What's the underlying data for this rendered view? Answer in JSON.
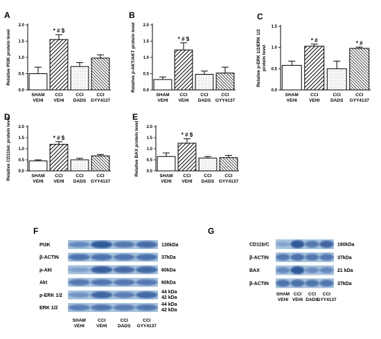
{
  "categories": [
    "SHAM VEHI",
    "CCI VEHI",
    "CCI DADS",
    "CCI GYY4137"
  ],
  "chart_data": [
    {
      "panel": "A",
      "type": "bar",
      "ylabel": "Relative PI3K protein level",
      "ylim": [
        0,
        2.0
      ],
      "yticks": [
        "0.0",
        "0.5",
        "1.0",
        "1.5",
        "2.0"
      ],
      "categories": [
        "SHAM VEHI",
        "CCI VEHI",
        "CCI DADS",
        "CCI GYY4137"
      ],
      "values": [
        0.5,
        1.55,
        0.72,
        0.98
      ],
      "errors": [
        0.2,
        0.15,
        0.12,
        0.1
      ],
      "annotations": [
        "",
        "*#$",
        "",
        ""
      ]
    },
    {
      "panel": "B",
      "type": "bar",
      "ylabel": "Relative p-AKT/AKT protein level",
      "ylim": [
        0,
        2.0
      ],
      "yticks": [
        "0.0",
        "0.5",
        "1.0",
        "1.5",
        "2.0"
      ],
      "categories": [
        "SHAM VEHI",
        "CCI VEHI",
        "CCI DADS",
        "CCI GYY4137"
      ],
      "values": [
        0.32,
        1.23,
        0.48,
        0.52
      ],
      "errors": [
        0.08,
        0.22,
        0.1,
        0.18
      ],
      "annotations": [
        "",
        "*#$",
        "",
        ""
      ]
    },
    {
      "panel": "C",
      "type": "bar",
      "ylabel": "Relative p-ERK 1/2/ERK 1/2 protein level",
      "ylim": [
        0,
        1.5
      ],
      "yticks": [
        "0.0",
        "0.5",
        "1.0",
        "1.5"
      ],
      "categories": [
        "SHAM VEHI",
        "CCI VEHI",
        "CCI DADS",
        "CCI GYY4137"
      ],
      "values": [
        0.58,
        1.03,
        0.5,
        0.98
      ],
      "errors": [
        0.1,
        0.05,
        0.18,
        0.03
      ],
      "annotations": [
        "",
        "*#",
        "",
        "*#"
      ]
    },
    {
      "panel": "D",
      "type": "bar",
      "ylabel": "Relative CD11b/c protein level",
      "ylim": [
        0,
        2.0
      ],
      "yticks": [
        "0.0",
        "0.5",
        "1.0",
        "1.5",
        "2.0"
      ],
      "categories": [
        "SHAM VEHI",
        "CCI VEHI",
        "CCI DADS",
        "CCI GYY4137"
      ],
      "values": [
        0.45,
        1.2,
        0.5,
        0.68
      ],
      "errors": [
        0.05,
        0.12,
        0.07,
        0.06
      ],
      "annotations": [
        "",
        "*#$",
        "",
        ""
      ]
    },
    {
      "panel": "E",
      "type": "bar",
      "ylabel": "Relative BAX protein level",
      "ylim": [
        0,
        2.0
      ],
      "yticks": [
        "0.0",
        "0.5",
        "1.0",
        "1.5",
        "2.0"
      ],
      "categories": [
        "SHAM VEHI",
        "CCI VEHI",
        "CCI DADS",
        "CCI GYY4137"
      ],
      "values": [
        0.65,
        1.25,
        0.58,
        0.6
      ],
      "errors": [
        0.16,
        0.2,
        0.07,
        0.1
      ],
      "annotations": [
        "",
        "*#$",
        "",
        ""
      ]
    }
  ],
  "blot_f": {
    "panel": "F",
    "rows": [
      {
        "label": "PI3K",
        "kda": "130kDa"
      },
      {
        "label": "β-ACTIN",
        "kda": "37kDa"
      },
      {
        "label": "p-Akt",
        "kda": "60kDa"
      },
      {
        "label": "Akt",
        "kda": "60kDa"
      },
      {
        "label": "p-ERK 1/2",
        "kda": "44 kDa\n42 kDa"
      },
      {
        "label": "ERK 1/2",
        "kda": "44 kDa\n42 kDa"
      }
    ],
    "lanes": [
      "SHAM VEHI",
      "CCI VEHI",
      "CCI DADS",
      "CCI GYY4137"
    ]
  },
  "blot_g": {
    "panel": "G",
    "rows": [
      {
        "label": "CD11b/C",
        "kda": "160kDa"
      },
      {
        "label": "β-ACTIN",
        "kda": "37kDa"
      },
      {
        "label": "BAX",
        "kda": "21 kDa"
      },
      {
        "label": "β-ACTIN",
        "kda": "37kDa"
      }
    ],
    "lanes": [
      "SHAM VEHI",
      "CCI VEHI",
      "CCI DADS",
      "CCI GYY4137"
    ]
  }
}
